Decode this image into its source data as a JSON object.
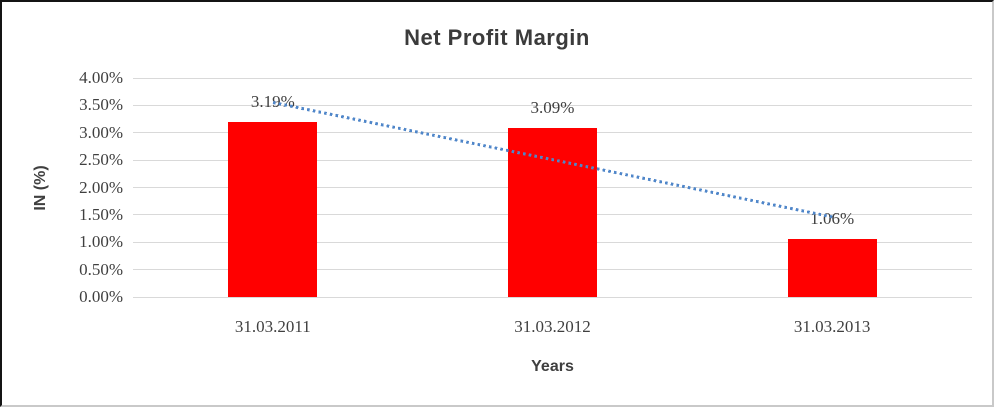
{
  "chart_data": {
    "type": "bar",
    "title": "Net Profit Margin",
    "xlabel": "Years",
    "ylabel": "IN (%)",
    "categories": [
      "31.03.2011",
      "31.03.2012",
      "31.03.2013"
    ],
    "series": [
      {
        "name": "Net Profit Margin",
        "values": [
          3.19,
          3.09,
          1.06
        ]
      }
    ],
    "value_labels": [
      "3.19%",
      "3.09%",
      "1.06%"
    ],
    "ylim": [
      0,
      4
    ],
    "ytick_labels": [
      "0.00%",
      "0.50%",
      "1.00%",
      "1.50%",
      "2.00%",
      "2.50%",
      "3.00%",
      "3.50%",
      "4.00%"
    ],
    "grid": "horizontal-only",
    "legend": "none",
    "trendline": {
      "type": "linear",
      "style": "dotted",
      "start_value": 3.55,
      "end_value": 1.46
    },
    "colors": {
      "bar": "#ff0000",
      "trendline": "#4f86c9",
      "gridline": "#d9d9d9",
      "title_text": "#3b3b3b",
      "tick_text": "#3f3f3f"
    }
  }
}
